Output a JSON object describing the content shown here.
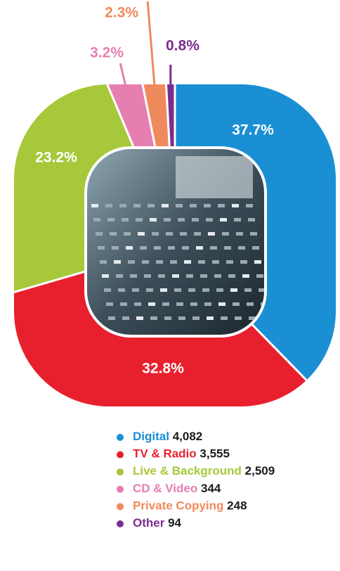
{
  "chart_data": {
    "type": "donut",
    "categories": [
      "Digital",
      "TV & Radio",
      "Live & Background",
      "CD & Video",
      "Private Copying",
      "Other"
    ],
    "values": [
      4082,
      3555,
      2509,
      344,
      248,
      94
    ],
    "value_labels": [
      "4,082",
      "3,555",
      "2,509",
      "344",
      "248",
      "94"
    ],
    "shares": [
      37.7,
      32.8,
      23.2,
      3.2,
      2.3,
      0.8
    ],
    "share_labels": [
      "37.7%",
      "32.8%",
      "23.2%",
      "3.2%",
      "2.3%",
      "0.8%"
    ],
    "colors": [
      "#1a8fd4",
      "#e8202e",
      "#a6c83a",
      "#e77eb0",
      "#ef8a5d",
      "#7b2d8e"
    ]
  }
}
